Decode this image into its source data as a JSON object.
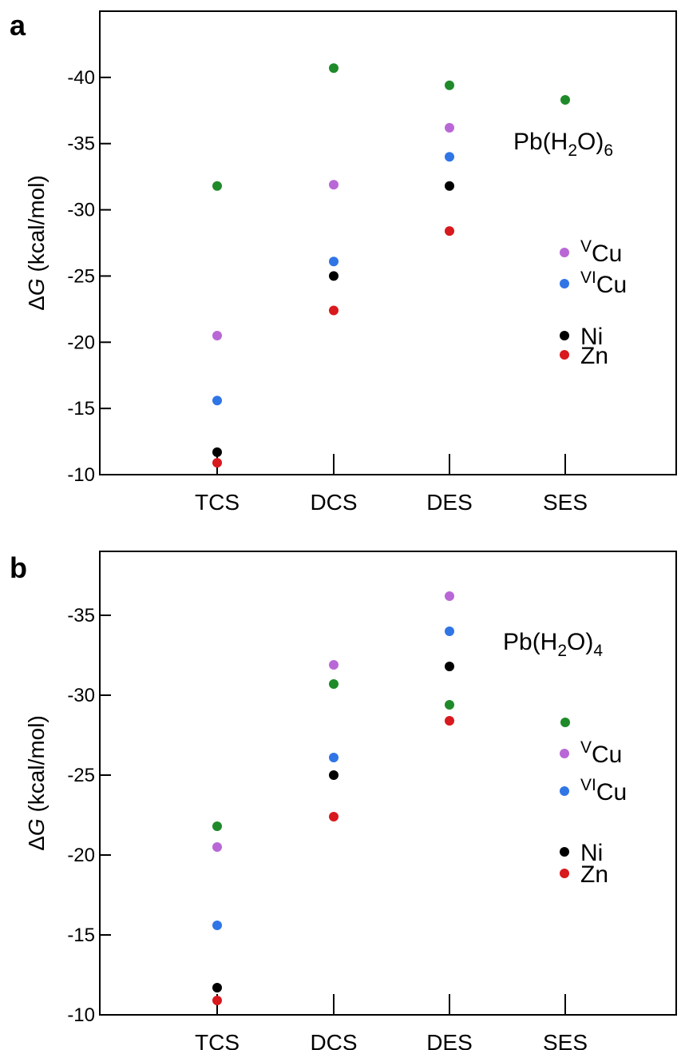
{
  "chart_data": [
    {
      "panel": "a",
      "type": "scatter",
      "complex": {
        "formula": "Pb(H",
        "sub1": "2",
        "mid": "O)",
        "sub2": "6"
      },
      "ylabel": {
        "delta": "Δ",
        "var": "G",
        "unit": " (kcal/mol)"
      },
      "ylim": [
        -10,
        -45
      ],
      "yticks": [
        -10,
        -15,
        -20,
        -25,
        -30,
        -35,
        -40
      ],
      "yticklabels": [
        "-10",
        "-15",
        "-20",
        "-25",
        "-30",
        "-35",
        "-40"
      ],
      "categories": [
        "TCS",
        "DCS",
        "DES",
        "SES"
      ],
      "grid": false,
      "legend_position": "right",
      "series": [
        {
          "key": "green",
          "color": "#1f8a2a",
          "values": [
            -31.8,
            -40.7,
            -39.4,
            -38.3
          ]
        },
        {
          "key": "VCu",
          "color": "#b967d6",
          "values": [
            -20.5,
            -31.9,
            -36.2,
            null
          ]
        },
        {
          "key": "VICu",
          "color": "#2f75e6",
          "values": [
            -15.6,
            -26.1,
            -34.0,
            null
          ]
        },
        {
          "key": "Ni",
          "color": "#000000",
          "values": [
            -11.7,
            -25.0,
            -31.8,
            null
          ]
        },
        {
          "key": "Zn",
          "color": "#d8191d",
          "values": [
            -10.9,
            -22.4,
            -28.4,
            null
          ]
        }
      ],
      "legend": [
        {
          "key": "VCu",
          "sup": "V",
          "label": "Cu",
          "color": "#b967d6"
        },
        {
          "key": "VICu",
          "sup": "VI",
          "label": "Cu",
          "color": "#2f75e6"
        },
        {
          "key": "Ni",
          "sup": "",
          "label": "Ni",
          "color": "#000000"
        },
        {
          "key": "Zn",
          "sup": "",
          "label": "Zn",
          "color": "#d8191d"
        }
      ]
    },
    {
      "panel": "b",
      "type": "scatter",
      "complex": {
        "formula": "Pb(H",
        "sub1": "2",
        "mid": "O)",
        "sub2": "4"
      },
      "ylabel": {
        "delta": "Δ",
        "var": "G",
        "unit": " (kcal/mol)"
      },
      "ylim": [
        -10,
        -39
      ],
      "yticks": [
        -10,
        -15,
        -20,
        -25,
        -30,
        -35
      ],
      "yticklabels": [
        "-10",
        "-15",
        "-20",
        "-25",
        "-30",
        "-35"
      ],
      "categories": [
        "TCS",
        "DCS",
        "DES",
        "SES"
      ],
      "grid": false,
      "legend_position": "right",
      "series": [
        {
          "key": "green",
          "color": "#1f8a2a",
          "values": [
            -21.8,
            -30.7,
            -29.4,
            -28.3
          ]
        },
        {
          "key": "VCu",
          "color": "#b967d6",
          "values": [
            -20.5,
            -31.9,
            -36.2,
            null
          ]
        },
        {
          "key": "VICu",
          "color": "#2f75e6",
          "values": [
            -15.6,
            -26.1,
            -34.0,
            null
          ]
        },
        {
          "key": "Ni",
          "color": "#000000",
          "values": [
            -11.7,
            -25.0,
            -31.8,
            null
          ]
        },
        {
          "key": "Zn",
          "color": "#d8191d",
          "values": [
            -10.9,
            -22.4,
            -28.4,
            null
          ]
        }
      ],
      "legend": [
        {
          "key": "VCu",
          "sup": "V",
          "label": "Cu",
          "color": "#b967d6"
        },
        {
          "key": "VICu",
          "sup": "VI",
          "label": "Cu",
          "color": "#2f75e6"
        },
        {
          "key": "Ni",
          "sup": "",
          "label": "Ni",
          "color": "#000000"
        },
        {
          "key": "Zn",
          "sup": "",
          "label": "Zn",
          "color": "#d8191d"
        }
      ]
    }
  ]
}
